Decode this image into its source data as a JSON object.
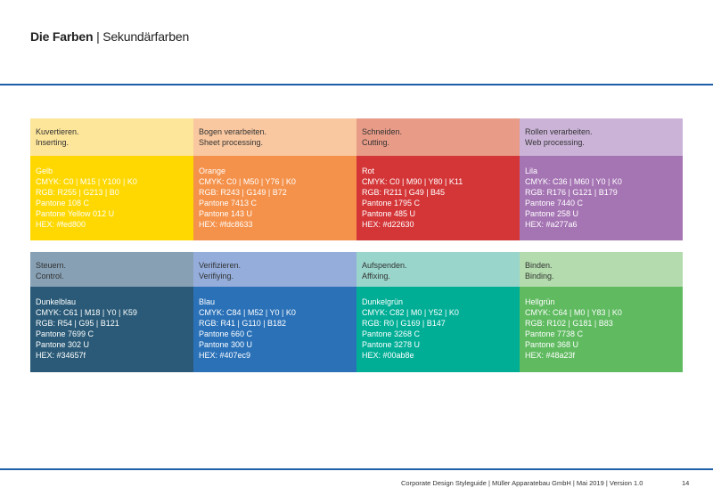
{
  "header": {
    "title_bold": "Die Farben",
    "separator": "|",
    "title_rest": "Sekundärfarben"
  },
  "rows": [
    [
      {
        "head": [
          "Kuvertieren.",
          "Inserting."
        ],
        "name": "Gelb",
        "cmyk": "CMYK: C0 | M15 | Y100 | K0",
        "rgb": "RGB: R255 | G213 | B0",
        "pantone_c": "Pantone 108 C",
        "pantone_u": "Pantone Yellow 012 U",
        "hex": "HEX: #fed800",
        "head_color": "#fde59a",
        "color": "#fed800"
      },
      {
        "head": [
          "Bogen verarbeiten.",
          "Sheet processing."
        ],
        "name": "Orange",
        "cmyk": "CMYK: C0 | M50 | Y76 | K0",
        "rgb": "RGB: R243 | G149 | B72",
        "pantone_c": "Pantone 7413 C",
        "pantone_u": "Pantone 143 U",
        "hex": "HEX: #fdc8633",
        "head_color": "#f9c8a0",
        "color": "#f4914a"
      },
      {
        "head": [
          "Schneiden.",
          "Cutting."
        ],
        "name": "Rot",
        "cmyk": "CMYK: C0 | M90 | Y80 | K11",
        "rgb": "RGB: R211 | G49 | B45",
        "pantone_c": "Pantone 1795 C",
        "pantone_u": "Pantone 485 U",
        "hex": "HEX: #d22630",
        "head_color": "#e89b87",
        "color": "#d43638"
      },
      {
        "head": [
          "Rollen verarbeiten.",
          "Web processing."
        ],
        "name": "Lila",
        "cmyk": "CMYK: C36 | M60 | Y0 | K0",
        "rgb": "RGB: R176 | G121 | B179",
        "pantone_c": "Pantone 7440 C",
        "pantone_u": "Pantone 258 U",
        "hex": "HEX: #a277a6",
        "head_color": "#cbb3d8",
        "color": "#a574b3"
      }
    ],
    [
      {
        "head": [
          "Steuern.",
          "Control."
        ],
        "name": "Dunkelblau",
        "cmyk": "CMYK: C61 | M18 | Y0 | K59",
        "rgb": "RGB: R54 | G95 | B121",
        "pantone_c": "Pantone 7699 C",
        "pantone_u": "Pantone 302 U",
        "hex": "HEX: #34657f",
        "head_color": "#87a0b4",
        "color": "#2a5a77"
      },
      {
        "head": [
          "Verifizieren.",
          "Verifiying."
        ],
        "name": "Blau",
        "cmyk": "CMYK: C84 | M52 | Y0 | K0",
        "rgb": "RGB: R41 | G110 | B182",
        "pantone_c": "Pantone 660 C",
        "pantone_u": "Pantone 300 U",
        "hex": "HEX: #407ec9",
        "head_color": "#94addb",
        "color": "#2a71b8"
      },
      {
        "head": [
          "Aufspenden.",
          "Affixing."
        ],
        "name": "Dunkelgrün",
        "cmyk": "CMYK: C82 | M0 | Y52 | K0",
        "rgb": "RGB: R0 | G169 | B147",
        "pantone_c": "Pantone 3268 C",
        "pantone_u": "Pantone 3278 U",
        "hex": "HEX: #00ab8e",
        "head_color": "#99d5cb",
        "color": "#00ae96"
      },
      {
        "head": [
          "Binden.",
          "Binding."
        ],
        "name": "Hellgrün",
        "cmyk": "CMYK: C64 | M0 | Y83 | K0",
        "rgb": "RGB: R102 | G181 | B83",
        "pantone_c": "Pantone 7738 C",
        "pantone_u": "Pantone 368 U",
        "hex": "HEX: #48a23f",
        "head_color": "#b3dbad",
        "color": "#5fba60"
      }
    ]
  ],
  "footer": {
    "text": "Corporate Design Styleguide | Müller Apparatebau GmbH | Mai 2019 | Version 1.0",
    "page": "14"
  },
  "accent": "#1f5ea8"
}
